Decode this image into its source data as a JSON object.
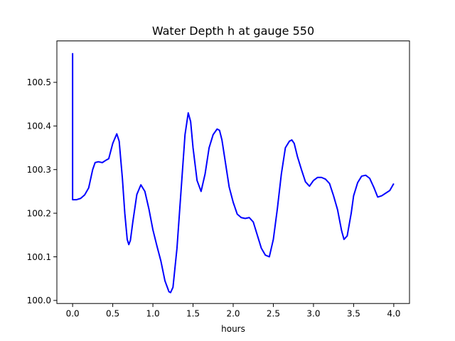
{
  "chart_data": {
    "type": "line",
    "title": "Water Depth h at gauge 550",
    "xlabel": "hours",
    "ylabel": "",
    "xlim": [
      -0.196,
      4.196
    ],
    "ylim": [
      99.993,
      100.595
    ],
    "xticks": [
      0.0,
      0.5,
      1.0,
      1.5,
      2.0,
      2.5,
      3.0,
      3.5,
      4.0
    ],
    "xtick_labels": [
      "0.0",
      "0.5",
      "1.0",
      "1.5",
      "2.0",
      "2.5",
      "3.0",
      "3.5",
      "4.0"
    ],
    "yticks": [
      100.0,
      100.1,
      100.2,
      100.3,
      100.4,
      100.5
    ],
    "ytick_labels": [
      "100.0",
      "100.1",
      "100.2",
      "100.3",
      "100.4",
      "100.5"
    ],
    "grid": false,
    "series": [
      {
        "color": "#0000ff",
        "x": [
          0.0,
          0.0,
          0.0,
          0.05,
          0.1,
          0.15,
          0.2,
          0.25,
          0.28,
          0.32,
          0.37,
          0.42,
          0.45,
          0.5,
          0.55,
          0.58,
          0.62,
          0.65,
          0.68,
          0.7,
          0.72,
          0.75,
          0.8,
          0.85,
          0.9,
          0.95,
          1.0,
          1.05,
          1.1,
          1.15,
          1.2,
          1.22,
          1.25,
          1.3,
          1.35,
          1.4,
          1.44,
          1.47,
          1.5,
          1.55,
          1.6,
          1.65,
          1.7,
          1.75,
          1.8,
          1.83,
          1.86,
          1.9,
          1.95,
          2.0,
          2.05,
          2.1,
          2.15,
          2.2,
          2.25,
          2.3,
          2.35,
          2.4,
          2.45,
          2.5,
          2.55,
          2.6,
          2.65,
          2.7,
          2.73,
          2.76,
          2.8,
          2.85,
          2.9,
          2.95,
          3.0,
          3.05,
          3.1,
          3.15,
          3.2,
          3.25,
          3.3,
          3.35,
          3.38,
          3.42,
          3.47,
          3.5,
          3.55,
          3.6,
          3.65,
          3.7,
          3.75,
          3.8,
          3.85,
          3.9,
          3.95,
          4.0
        ],
        "y": [
          100.567,
          100.231,
          100.231,
          100.231,
          100.234,
          100.242,
          100.258,
          100.3,
          100.316,
          100.318,
          100.316,
          100.322,
          100.325,
          100.36,
          100.382,
          100.365,
          100.28,
          100.2,
          100.14,
          100.128,
          100.138,
          100.18,
          100.243,
          100.265,
          100.25,
          100.21,
          100.162,
          100.125,
          100.09,
          100.045,
          100.02,
          100.018,
          100.03,
          100.12,
          100.25,
          100.38,
          100.43,
          100.41,
          100.35,
          100.275,
          100.25,
          100.29,
          100.35,
          100.38,
          100.393,
          100.39,
          100.368,
          100.32,
          100.26,
          100.225,
          100.198,
          100.19,
          100.188,
          100.19,
          100.18,
          100.15,
          100.12,
          100.104,
          100.1,
          100.14,
          100.21,
          100.29,
          100.35,
          100.365,
          100.368,
          100.36,
          100.33,
          100.3,
          100.272,
          100.262,
          100.275,
          100.282,
          100.282,
          100.278,
          100.268,
          100.24,
          100.208,
          100.16,
          100.14,
          100.148,
          100.2,
          100.24,
          100.27,
          100.285,
          100.287,
          100.28,
          100.26,
          100.237,
          100.24,
          100.246,
          100.252,
          100.268
        ]
      }
    ]
  }
}
